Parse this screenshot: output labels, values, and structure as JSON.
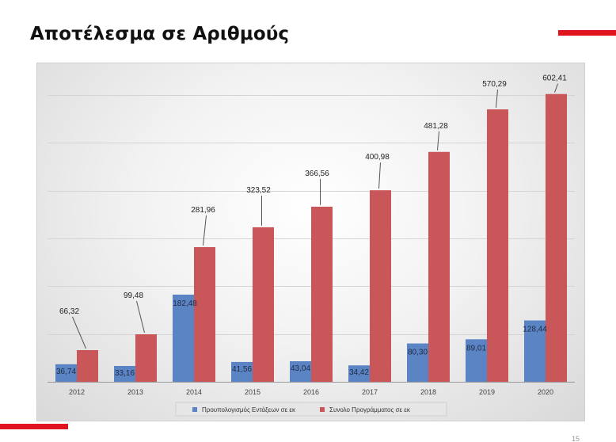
{
  "slide": {
    "title": "Αποτέλεσμα σε Αριθμούς",
    "page_number": "15"
  },
  "colors": {
    "accent": "#e0141e",
    "blue_series": "#5b84c4",
    "red_series": "#c9575a"
  },
  "chart_data": {
    "type": "bar",
    "categories": [
      "2012",
      "2013",
      "2014",
      "2015",
      "2016",
      "2017",
      "2018",
      "2019",
      "2020"
    ],
    "series": [
      {
        "name": "Προυπολογισμός Εντάξεων  σε εκ",
        "color": "#5b84c4",
        "values": [
          36.74,
          33.16,
          182.48,
          41.56,
          43.04,
          34.42,
          80.3,
          89.01,
          128.44
        ],
        "labels": [
          "36,74",
          "33,16",
          "182,48",
          "41,56",
          "43,04",
          "34,42",
          "80,30",
          "89,01",
          "128,44"
        ]
      },
      {
        "name": "Συνολο Προγράμματος σε εκ",
        "color": "#c9575a",
        "values": [
          66.32,
          99.48,
          281.96,
          323.52,
          366.56,
          400.98,
          481.28,
          570.29,
          602.41
        ],
        "labels": [
          "66,32",
          "99,48",
          "281,96",
          "323,52",
          "366,56",
          "400,98",
          "481,28",
          "570,29",
          "602,41"
        ]
      }
    ],
    "ylim": [
      0,
      650
    ],
    "grid": true,
    "legend": "bottom"
  }
}
